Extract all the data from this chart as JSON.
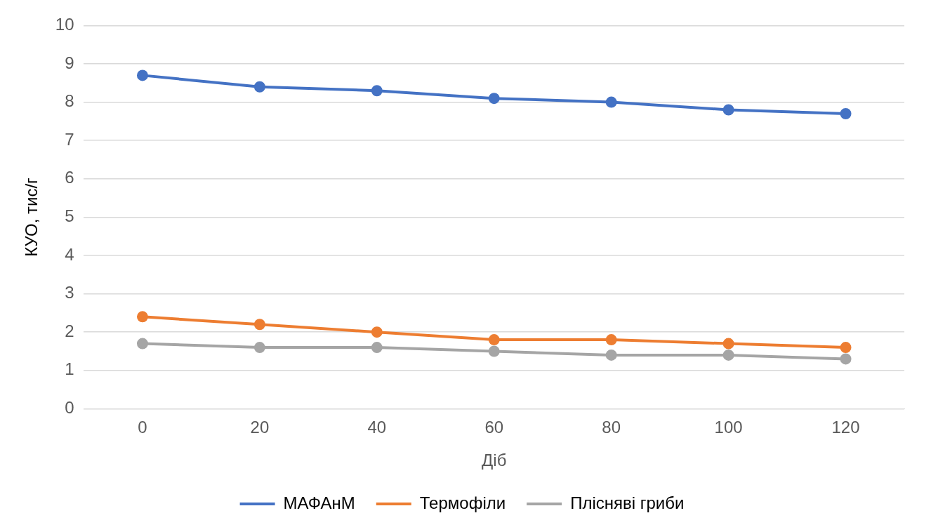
{
  "chart_data": {
    "type": "line",
    "xlabel": "Діб",
    "ylabel": "КУО, тис/г",
    "categories": [
      "0",
      "20",
      "40",
      "60",
      "80",
      "100",
      "120"
    ],
    "series": [
      {
        "name": "МАФАнМ",
        "color": "#4472c4",
        "values": [
          8.7,
          8.4,
          8.3,
          8.1,
          8.0,
          7.8,
          7.7
        ]
      },
      {
        "name": "Термофіли",
        "color": "#ed7d31",
        "values": [
          2.4,
          2.2,
          2.0,
          1.8,
          1.8,
          1.7,
          1.6
        ]
      },
      {
        "name": "Плісняві гриби",
        "color": "#a5a5a5",
        "values": [
          1.7,
          1.6,
          1.6,
          1.5,
          1.4,
          1.4,
          1.3
        ]
      }
    ],
    "ylim": [
      0,
      10
    ],
    "yticks": [
      0,
      1,
      2,
      3,
      4,
      5,
      6,
      7,
      8,
      9,
      10
    ],
    "grid": "y",
    "legend": "bottom",
    "marker": "circle",
    "line_style": "solid"
  }
}
